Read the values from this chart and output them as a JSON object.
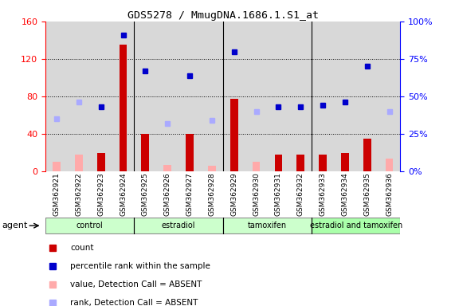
{
  "title": "GDS5278 / MmugDNA.1686.1.S1_at",
  "samples": [
    "GSM362921",
    "GSM362922",
    "GSM362923",
    "GSM362924",
    "GSM362925",
    "GSM362926",
    "GSM362927",
    "GSM362928",
    "GSM362929",
    "GSM362930",
    "GSM362931",
    "GSM362932",
    "GSM362933",
    "GSM362934",
    "GSM362935",
    "GSM362936"
  ],
  "count_present": [
    null,
    null,
    20,
    135,
    40,
    null,
    40,
    null,
    77,
    null,
    18,
    18,
    18,
    20,
    35,
    null
  ],
  "count_absent": [
    10,
    18,
    null,
    null,
    null,
    7,
    null,
    6,
    null,
    10,
    null,
    null,
    null,
    null,
    null,
    14
  ],
  "rank_present": [
    null,
    null,
    43,
    91,
    67,
    null,
    64,
    null,
    80,
    null,
    43,
    43,
    44,
    46,
    70,
    null
  ],
  "rank_absent": [
    35,
    46,
    null,
    null,
    null,
    32,
    null,
    34,
    null,
    40,
    null,
    null,
    null,
    null,
    null,
    40
  ],
  "groups": [
    {
      "label": "control",
      "start": 0,
      "end": 4,
      "color": "#ccffcc"
    },
    {
      "label": "estradiol",
      "start": 4,
      "end": 8,
      "color": "#ccffcc"
    },
    {
      "label": "tamoxifen",
      "start": 8,
      "end": 12,
      "color": "#ccffcc"
    },
    {
      "label": "estradiol and tamoxifen",
      "start": 12,
      "end": 16,
      "color": "#aaffaa"
    }
  ],
  "ylim_left": [
    0,
    160
  ],
  "ylim_right": [
    0,
    100
  ],
  "yticks_left": [
    0,
    40,
    80,
    120,
    160
  ],
  "yticks_right": [
    0,
    25,
    50,
    75,
    100
  ],
  "ytick_labels_left": [
    "0",
    "40",
    "80",
    "120",
    "160"
  ],
  "ytick_labels_right": [
    "0%",
    "25%",
    "50%",
    "75%",
    "100%"
  ],
  "bar_color_present": "#cc0000",
  "bar_color_absent": "#ffaaaa",
  "marker_color_present": "#0000cc",
  "marker_color_absent": "#aaaaff",
  "bar_width": 0.35,
  "legend_items": [
    {
      "color": "#cc0000",
      "label": "count"
    },
    {
      "color": "#0000cc",
      "label": "percentile rank within the sample"
    },
    {
      "color": "#ffaaaa",
      "label": "value, Detection Call = ABSENT"
    },
    {
      "color": "#aaaaff",
      "label": "rank, Detection Call = ABSENT"
    }
  ],
  "agent_label": "agent",
  "col_bg_color": "#d8d8d8"
}
